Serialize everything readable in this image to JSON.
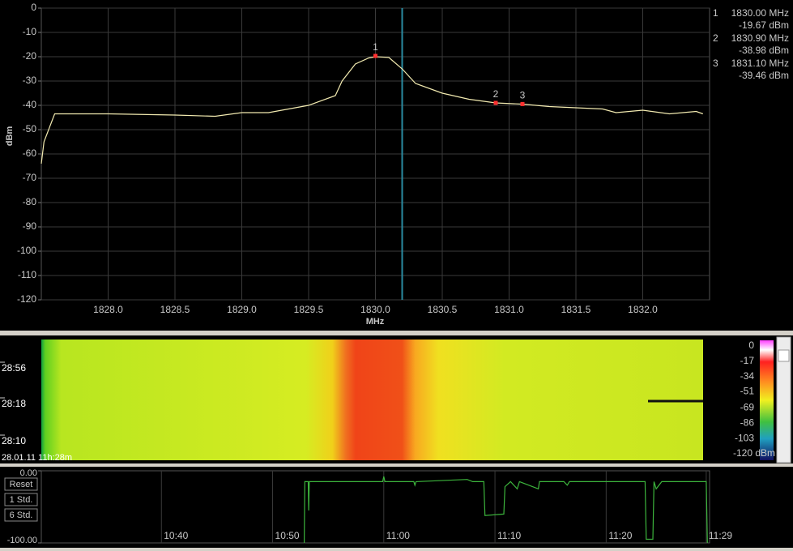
{
  "chart_data": [
    {
      "type": "line",
      "xlabel": "MHz",
      "ylabel": "dBm",
      "xlim": [
        1827.5,
        1832.5
      ],
      "ylim": [
        -120,
        0
      ],
      "xticks": [
        {
          "value": 1828,
          "label": "1828.0"
        },
        {
          "value": 1828.5,
          "label": "1828.5"
        },
        {
          "value": 1829,
          "label": "1829.0"
        },
        {
          "value": 1829.5,
          "label": "1829.5"
        },
        {
          "value": 1830,
          "label": "1830.0"
        },
        {
          "value": 1830.5,
          "label": "1830.5"
        },
        {
          "value": 1831,
          "label": "1831.0"
        },
        {
          "value": 1831.5,
          "label": "1831.5"
        },
        {
          "value": 1832,
          "label": "1832.0"
        }
      ],
      "yticks": [
        0,
        -10,
        -20,
        -30,
        -40,
        -50,
        -60,
        -70,
        -80,
        -90,
        -100,
        -110,
        -120
      ],
      "grid": true,
      "cursor_x": 1830.2,
      "series": [
        {
          "color": "#f2eab0",
          "x": [
            1827.5,
            1827.52,
            1827.6,
            1828.0,
            1828.5,
            1828.8,
            1829.0,
            1829.2,
            1829.5,
            1829.7,
            1829.75,
            1829.85,
            1829.95,
            1830.0,
            1830.1,
            1830.2,
            1830.3,
            1830.5,
            1830.7,
            1830.9,
            1831.1,
            1831.3,
            1831.5,
            1831.7,
            1831.8,
            1832.0,
            1832.2,
            1832.4,
            1832.45
          ],
          "values": [
            -64,
            -55,
            -43.5,
            -43.5,
            -44,
            -44.5,
            -43,
            -43,
            -40,
            -36,
            -30,
            -23,
            -20.5,
            -20,
            -20.3,
            -25,
            -31,
            -35,
            -37.5,
            -39,
            -39.5,
            -40.5,
            -41,
            -41.5,
            -43,
            -42,
            -43.5,
            -42.5,
            -43.5
          ]
        }
      ],
      "markers": [
        {
          "label": "1",
          "x": 1830.0,
          "y": -19.67,
          "x_label": "1830.00 MHz",
          "y_label": "-19.67 dBm"
        },
        {
          "label": "2",
          "x": 1830.9,
          "y": -38.98,
          "x_label": "1830.90 MHz",
          "y_label": "-38.98 dBm"
        },
        {
          "label": "3",
          "x": 1831.1,
          "y": -39.46,
          "x_label": "1831.10 MHz",
          "y_label": "-39.46 dBm"
        }
      ]
    },
    {
      "type": "waterfall",
      "time_labels": [
        "28:56",
        "28:18",
        "28:10"
      ],
      "timestamp": "28.01.11 11h:28m",
      "colorbar_lim": [
        -120,
        0
      ],
      "colorbar_ticks": [
        0,
        -17,
        -34,
        -51,
        -69,
        -86,
        -103,
        {
          "value": -120,
          "label": "-120 dBm"
        }
      ]
    },
    {
      "type": "line",
      "xlim": [
        629.2,
        689.3
      ],
      "ylim": [
        -100,
        0
      ],
      "xticks": [
        {
          "value": 640,
          "label": "10:40"
        },
        {
          "value": 650,
          "label": "10:50"
        },
        {
          "value": 660,
          "label": "11:00"
        },
        {
          "value": 670,
          "label": "11:10"
        },
        {
          "value": 680,
          "label": "11:20"
        },
        {
          "value": 689,
          "label": "11:29"
        }
      ],
      "yticks": [
        {
          "value": 0,
          "label": "0.00"
        },
        {
          "value": -100,
          "label": "-100.00"
        }
      ],
      "grid": true,
      "series": [
        {
          "color": "#3cb43c",
          "x": [
            652.85,
            652.9,
            653.2,
            653.25,
            653.3,
            659.9,
            660.0,
            660.1,
            662.7,
            662.8,
            662.9,
            667.5,
            668.0,
            669.0,
            669.1,
            670.8,
            670.9,
            671.4,
            672.0,
            672.2,
            673.9,
            674.0,
            676.2,
            676.5,
            676.7,
            683.5,
            683.6,
            684.2,
            684.3,
            684.5,
            685.0,
            689.0,
            689.1
          ],
          "values": [
            -100,
            -15,
            -15,
            -55,
            -15,
            -15,
            -8,
            -15,
            -15,
            -20,
            -15,
            -12,
            -15,
            -15,
            -62,
            -60,
            -22,
            -15,
            -25,
            -15,
            -25,
            -15,
            -15,
            -20,
            -15,
            -15,
            -95,
            -95,
            -15,
            -25,
            -15,
            -15,
            -100
          ]
        }
      ],
      "buttons": [
        "Reset",
        "1 Std.",
        "6 Std."
      ]
    }
  ]
}
